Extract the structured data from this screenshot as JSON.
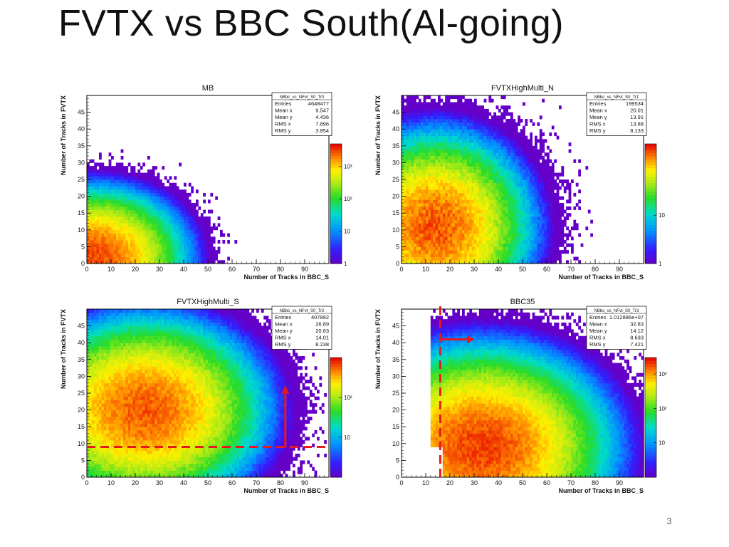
{
  "slide": {
    "title": "FVTX vs BBC South(Al-going)",
    "page_number": "3"
  },
  "chart_data": [
    {
      "type": "heatmap",
      "title": "MB",
      "xlabel": "Number of Tracks in BBC_S",
      "ylabel": "Number of Tracks in FVTX",
      "xlim": [
        0,
        100
      ],
      "ylim": [
        0,
        50
      ],
      "x_ticks": [
        0,
        10,
        20,
        30,
        40,
        50,
        60,
        70,
        80,
        90
      ],
      "y_ticks": [
        0,
        5,
        10,
        15,
        20,
        25,
        30,
        35,
        40,
        45
      ],
      "z_scale": "log",
      "zlim": [
        1,
        5000
      ],
      "z_tick_labels": [
        {
          "value": 1,
          "label": "1"
        },
        {
          "value": 10,
          "label": "10"
        },
        {
          "value": 100,
          "label": "10²"
        },
        {
          "value": 1000,
          "label": "10³"
        }
      ],
      "stats": {
        "name": "NBbc_vs_NFvt_S0_Tr0",
        "rows": [
          [
            "Entries",
            "4648477"
          ],
          [
            "Mean x",
            "9.547"
          ],
          [
            "Mean y",
            "4.436"
          ],
          [
            "RMS x",
            "7.896"
          ],
          [
            "RMS y",
            "3.854"
          ]
        ]
      },
      "distribution": {
        "peak_x": 3,
        "peak_y": 2,
        "sigma_x": 11,
        "sigma_y": 6,
        "peak_count": 3000,
        "max_x": 93,
        "max_y": 48
      }
    },
    {
      "type": "heatmap",
      "title": "FVTXHighMulti_N",
      "xlabel": "Number of Tracks in BBC_S",
      "ylabel": "Number of Tracks in FVTX",
      "xlim": [
        0,
        100
      ],
      "ylim": [
        0,
        50
      ],
      "x_ticks": [
        0,
        10,
        20,
        30,
        40,
        50,
        60,
        70,
        80,
        90
      ],
      "y_ticks": [
        0,
        5,
        10,
        15,
        20,
        25,
        30,
        35,
        40,
        45
      ],
      "z_scale": "log",
      "zlim": [
        1,
        300
      ],
      "z_tick_labels": [
        {
          "value": 1,
          "label": "1"
        },
        {
          "value": 10,
          "label": "10"
        }
      ],
      "stats": {
        "name": "NBbc_vs_NFvt_S0_Tr1",
        "rows": [
          [
            "Entries",
            "199534"
          ],
          [
            "Mean x",
            "20.01"
          ],
          [
            "Mean y",
            "13.91"
          ],
          [
            "RMS x",
            "13.88"
          ],
          [
            "RMS y",
            "8.133"
          ]
        ]
      },
      "distribution": {
        "peak_x": 14,
        "peak_y": 11,
        "sigma_x": 14,
        "sigma_y": 10,
        "peak_count": 200,
        "max_x": 100,
        "max_y": 50
      }
    },
    {
      "type": "heatmap",
      "title": "FVTXHighMulti_S",
      "xlabel": "Number of Tracks in BBC_S",
      "ylabel": "Number of Tracks in FVTX",
      "xlim": [
        0,
        100
      ],
      "ylim": [
        0,
        50
      ],
      "x_ticks": [
        0,
        10,
        20,
        30,
        40,
        50,
        60,
        70,
        80,
        90
      ],
      "y_ticks": [
        0,
        5,
        10,
        15,
        20,
        25,
        30,
        35,
        40,
        45
      ],
      "z_scale": "log",
      "zlim": [
        1,
        1000
      ],
      "z_tick_labels": [
        {
          "value": 10,
          "label": "10"
        },
        {
          "value": 100,
          "label": "10²"
        }
      ],
      "stats": {
        "name": "NBbc_vs_NFvt_S0_Tr2",
        "rows": [
          [
            "Entries",
            "407892"
          ],
          [
            "Mean x",
            "26.89"
          ],
          [
            "Mean y",
            "20.63"
          ],
          [
            "RMS x",
            "14.01"
          ],
          [
            "RMS y",
            "8.238"
          ]
        ]
      },
      "distribution": {
        "peak_x": 24,
        "peak_y": 20,
        "sigma_x": 16,
        "sigma_y": 9,
        "peak_count": 600,
        "max_x": 100,
        "max_y": 50
      },
      "annotations": [
        {
          "type": "dashed-line",
          "orientation": "horizontal",
          "y": 9,
          "x_from": 0,
          "x_to": 100,
          "color": "#e41a1c"
        },
        {
          "type": "arrow",
          "from": [
            82,
            9
          ],
          "to": [
            82,
            27
          ],
          "color": "#e41a1c"
        }
      ]
    },
    {
      "type": "heatmap",
      "title": "BBC35",
      "xlabel": "Number of Tracks in BBC_S",
      "ylabel": "Number of Tracks in FVTX",
      "xlim": [
        0,
        100
      ],
      "ylim": [
        0,
        50
      ],
      "x_ticks": [
        0,
        10,
        20,
        30,
        40,
        50,
        60,
        70,
        80,
        90
      ],
      "y_ticks": [
        0,
        5,
        10,
        15,
        20,
        25,
        30,
        35,
        40,
        45
      ],
      "z_scale": "log",
      "zlim": [
        1,
        3000
      ],
      "z_tick_labels": [
        {
          "value": 10,
          "label": "10"
        },
        {
          "value": 100,
          "label": "10²"
        },
        {
          "value": 1000,
          "label": "10³"
        }
      ],
      "stats": {
        "name": "NBbc_vs_NFvt_S0_Tr3",
        "rows": [
          [
            "Entries",
            "1.012886e+07"
          ],
          [
            "Mean x",
            "32.83"
          ],
          [
            "Mean y",
            "14.12"
          ],
          [
            "RMS x",
            "8.633"
          ],
          [
            "RMS y",
            "7.421"
          ]
        ]
      },
      "distribution": {
        "peak_x": 33,
        "peak_y": 9,
        "sigma_x": 16,
        "sigma_y": 9,
        "peak_count": 2000,
        "min_x": 16,
        "max_x": 100,
        "max_y": 50
      },
      "annotations": [
        {
          "type": "dashed-line",
          "orientation": "vertical",
          "x": 16,
          "y_from": 0,
          "y_to": 52,
          "color": "#e41a1c"
        },
        {
          "type": "arrow",
          "from": [
            16,
            41
          ],
          "to": [
            30,
            41
          ],
          "color": "#e41a1c"
        }
      ]
    }
  ]
}
